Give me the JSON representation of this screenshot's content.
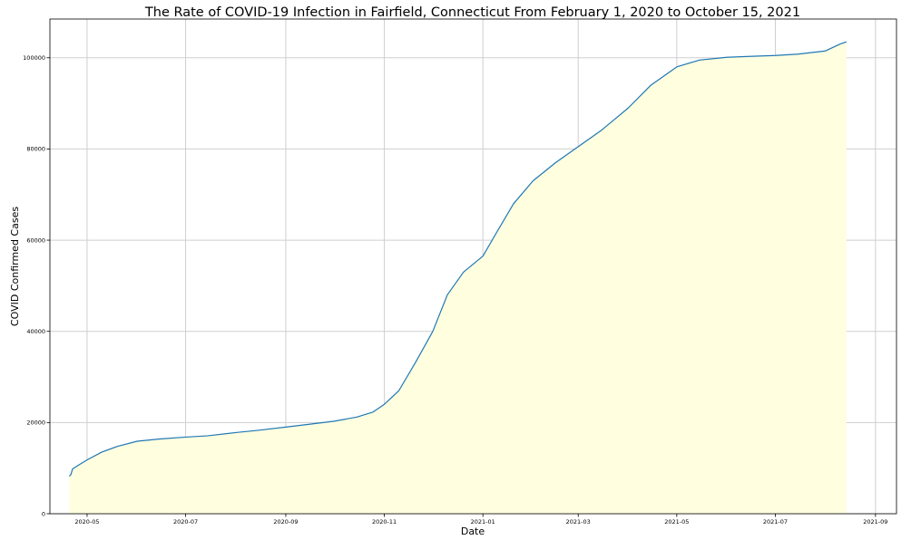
{
  "chart_data": {
    "type": "area",
    "title": "The Rate of COVID-19 Infection in Fairfield, Connecticut From February 1, 2020 to October 15, 2021",
    "xlabel": "Date",
    "ylabel": "COVID Confirmed Cases",
    "xlim": [
      "2020-04-08",
      "2021-09-14"
    ],
    "ylim": [
      0,
      108500
    ],
    "grid": true,
    "fill_color": "#ffffe0",
    "line_color": "#1f77b4",
    "x_ticks": [
      "2020-05-01",
      "2020-07-01",
      "2020-09-01",
      "2020-11-01",
      "2021-01-01",
      "2021-03-01",
      "2021-05-01",
      "2021-07-01",
      "2021-09-01"
    ],
    "x_tick_labels": [
      "2020-05",
      "2020-07",
      "2020-09",
      "2020-11",
      "2021-01",
      "2021-03",
      "2021-05",
      "2021-07",
      "2021-09"
    ],
    "y_ticks": [
      0,
      20000,
      40000,
      60000,
      80000,
      100000
    ],
    "y_tick_labels": [
      "0",
      "20000",
      "40000",
      "60000",
      "80000",
      "100000"
    ],
    "series": [
      {
        "x": [
          "2020-04-20",
          "2020-04-21",
          "2020-04-22",
          "2020-04-25",
          "2020-05-01",
          "2020-05-10",
          "2020-05-20",
          "2020-06-01",
          "2020-06-15",
          "2020-07-01",
          "2020-07-15",
          "2020-08-01",
          "2020-08-15",
          "2020-09-01",
          "2020-09-15",
          "2020-10-01",
          "2020-10-15",
          "2020-10-25",
          "2020-11-01",
          "2020-11-10",
          "2020-11-20",
          "2020-12-01",
          "2020-12-10",
          "2020-12-20",
          "2021-01-01",
          "2021-01-10",
          "2021-01-20",
          "2021-02-01",
          "2021-02-15",
          "2021-03-01",
          "2021-03-15",
          "2021-04-01",
          "2021-04-15",
          "2021-05-01",
          "2021-05-15",
          "2021-06-01",
          "2021-06-15",
          "2021-07-01",
          "2021-07-15",
          "2021-08-01",
          "2021-08-10",
          "2021-08-14"
        ],
        "values": [
          8200,
          8600,
          9800,
          10500,
          11800,
          13500,
          14800,
          15900,
          16400,
          16800,
          17100,
          17800,
          18300,
          19000,
          19600,
          20300,
          21200,
          22300,
          24000,
          27000,
          33000,
          40000,
          48000,
          53000,
          56500,
          62000,
          68000,
          73000,
          77000,
          80500,
          84000,
          89000,
          94000,
          98000,
          99500,
          100100,
          100300,
          100500,
          100800,
          101500,
          103000,
          103500
        ]
      }
    ]
  }
}
